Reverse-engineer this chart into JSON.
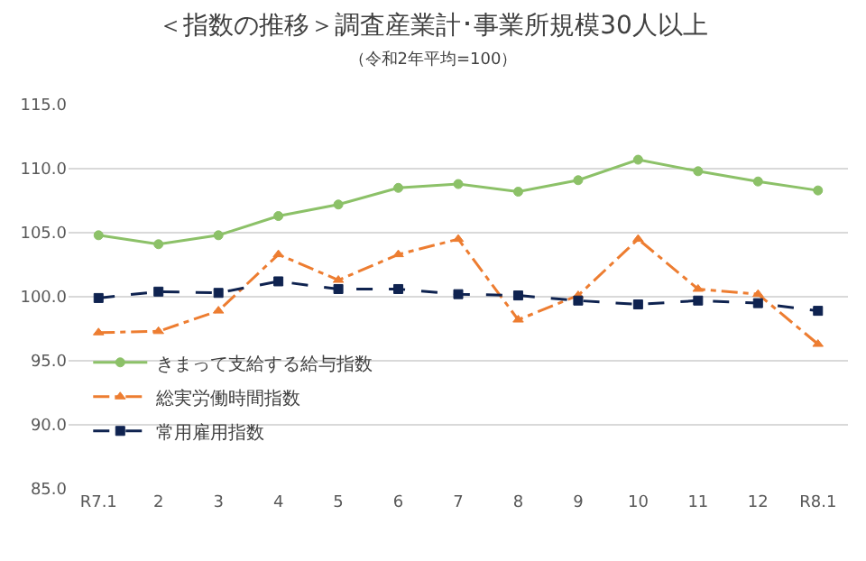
{
  "chart_data": {
    "type": "line",
    "title": "＜指数の推移＞調査産業計･事業所規模30人以上",
    "subtitle": "（令和2年平均=100）",
    "categories": [
      "R7.1",
      "2",
      "3",
      "4",
      "5",
      "6",
      "7",
      "8",
      "9",
      "10",
      "11",
      "12",
      "R8.1"
    ],
    "series": [
      {
        "name": "きまって支給する給与指数",
        "color": "#8cc168",
        "marker": "circle",
        "line_style": "solid",
        "values": [
          104.8,
          104.1,
          104.8,
          106.3,
          107.2,
          108.5,
          108.8,
          108.2,
          109.1,
          110.7,
          109.8,
          109.0,
          108.3
        ]
      },
      {
        "name": "総実労働時間指数",
        "color": "#ed7d31",
        "marker": "triangle",
        "line_style": "dashdot",
        "values": [
          97.2,
          97.3,
          98.9,
          103.3,
          101.3,
          103.3,
          104.5,
          98.2,
          100.1,
          104.5,
          100.6,
          100.2,
          96.3
        ]
      },
      {
        "name": "常用雇用指数",
        "color": "#0f2350",
        "marker": "square",
        "line_style": "dashed",
        "values": [
          99.9,
          100.4,
          100.3,
          101.2,
          100.6,
          100.6,
          100.2,
          100.1,
          99.7,
          99.4,
          99.7,
          99.5,
          98.9
        ]
      }
    ],
    "ylim": [
      85,
      115
    ],
    "yticks": [
      {
        "value": 85,
        "label": "85.0"
      },
      {
        "value": 90,
        "label": "90.0"
      },
      {
        "value": 95,
        "label": "95.0"
      },
      {
        "value": 100,
        "label": "100.0"
      },
      {
        "value": 105,
        "label": "105.0"
      },
      {
        "value": 110,
        "label": "110.0"
      },
      {
        "value": 115,
        "label": "115.0"
      }
    ],
    "grid": "y",
    "legend": "left"
  }
}
